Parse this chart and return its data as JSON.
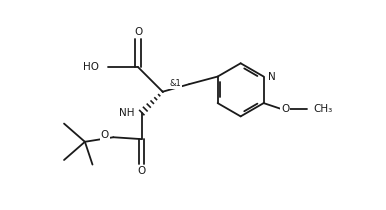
{
  "bg_color": "#ffffff",
  "line_color": "#1a1a1a",
  "line_width": 1.3,
  "font_size": 7.5,
  "figsize": [
    3.86,
    2.1
  ],
  "dpi": 100,
  "xlim": [
    0,
    10
  ],
  "ylim": [
    0,
    5.5
  ]
}
